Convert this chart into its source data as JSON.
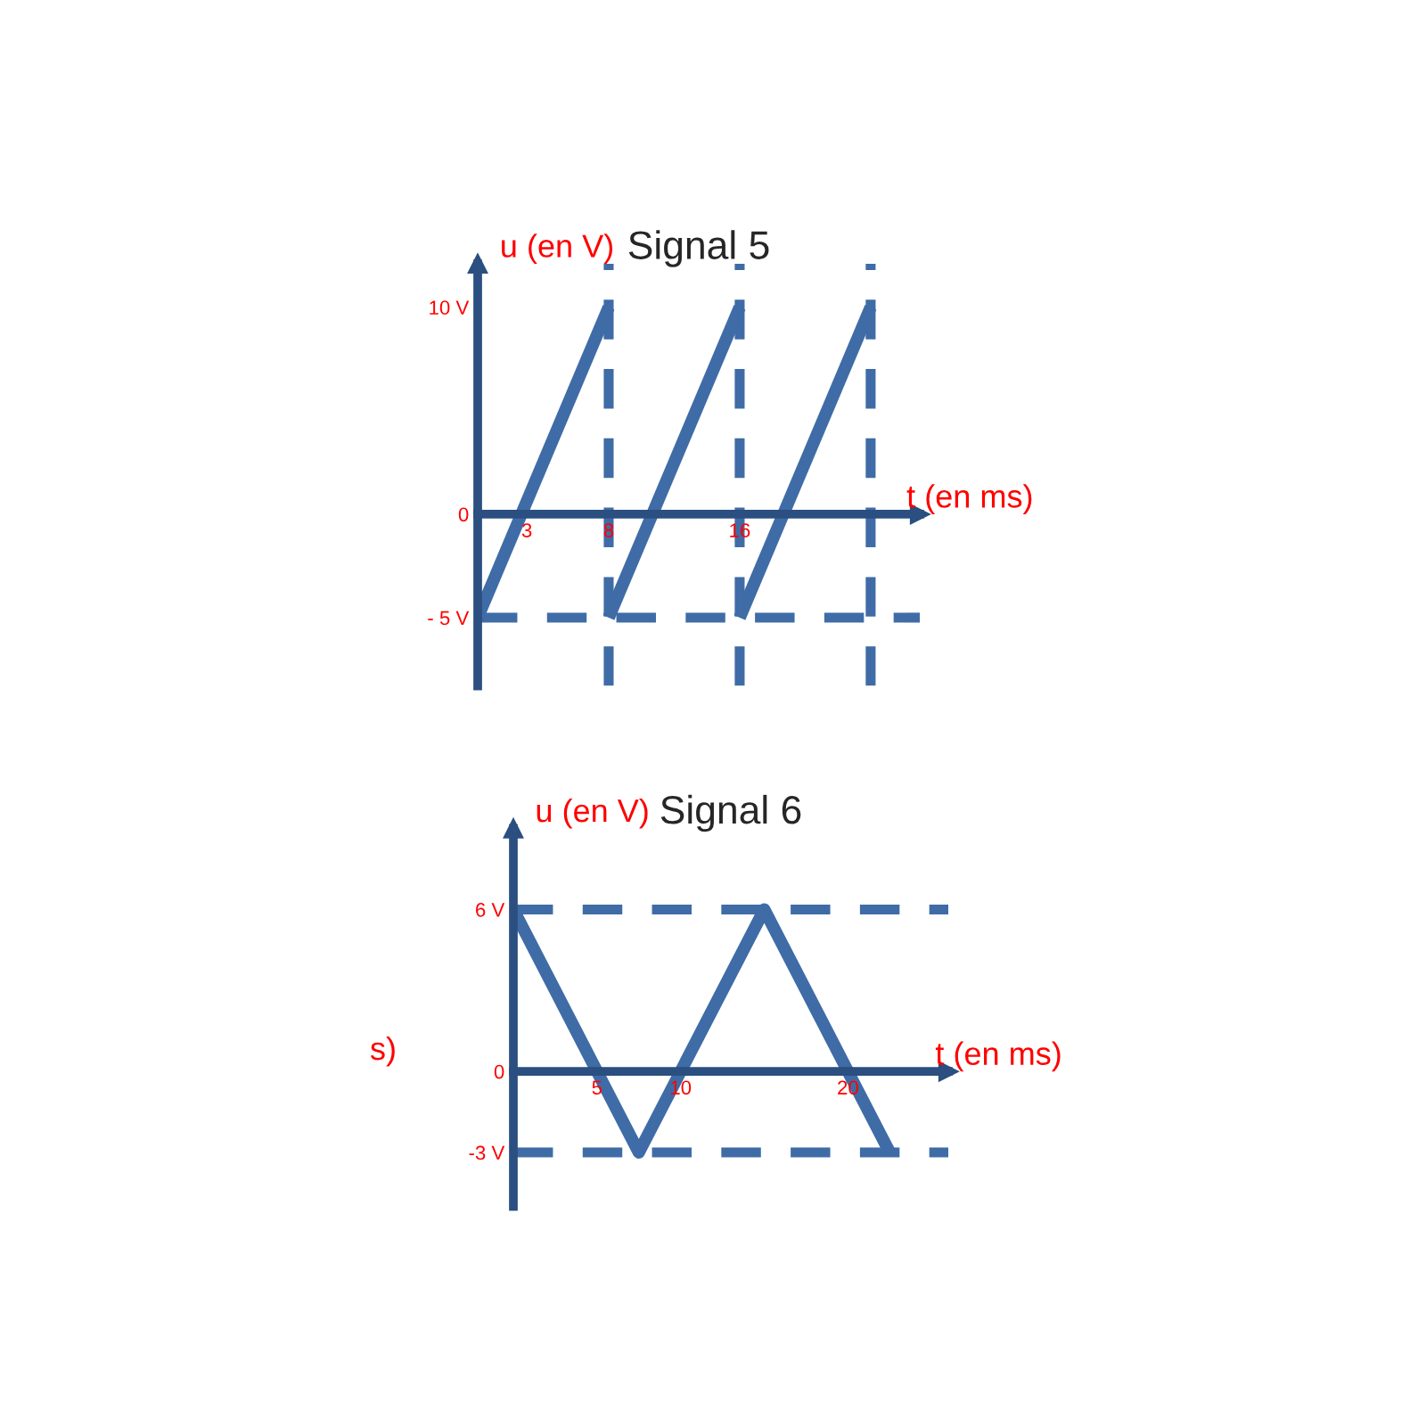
{
  "chart_data": [
    {
      "type": "line",
      "title": "Signal 5",
      "xlabel": "t (en ms)",
      "ylabel": "u (en V)",
      "series": [
        {
          "color": "#3f6ca6",
          "x": [
            0,
            8
          ],
          "values": [
            -5,
            10
          ]
        },
        {
          "color": "#3f6ca6",
          "x": [
            8,
            16
          ],
          "values": [
            -5,
            10
          ]
        },
        {
          "color": "#3f6ca6",
          "x": [
            16,
            24
          ],
          "values": [
            -5,
            10
          ]
        }
      ],
      "xlim": [
        0,
        27
      ],
      "ylim": [
        -8.3,
        12.1
      ],
      "xticks": [
        3,
        8,
        16
      ],
      "yticks": [
        {
          "value": -5,
          "label": "- 5 V"
        },
        0,
        {
          "value": 10,
          "label": "10 V"
        }
      ],
      "ref_lines": [
        {
          "axis": "y",
          "value": -5,
          "line_style": "dashed",
          "color": "#3f6ca6"
        },
        {
          "axis": "x",
          "value": 8,
          "line_style": "dashed",
          "color": "#3f6ca6"
        },
        {
          "axis": "x",
          "value": 16,
          "line_style": "dashed",
          "color": "#3f6ca6"
        },
        {
          "axis": "x",
          "value": 24,
          "line_style": "dashed",
          "color": "#3f6ca6"
        }
      ],
      "grid": false,
      "legend": false,
      "line_style": "solid"
    },
    {
      "type": "line",
      "title": "Signal 6",
      "xlabel": "t (en ms)",
      "ylabel": "u (en V)",
      "series": [
        {
          "color": "#3f6ca6",
          "x": [
            0,
            7.5,
            15,
            22.5
          ],
          "values": [
            6,
            -3,
            6,
            -3
          ]
        }
      ],
      "xlim": [
        0,
        26
      ],
      "ylim": [
        -5,
        9
      ],
      "xticks": [
        5,
        10,
        20
      ],
      "yticks": [
        {
          "value": -3,
          "label": "-3 V"
        },
        0,
        {
          "value": 6,
          "label": "6 V"
        }
      ],
      "ref_lines": [
        {
          "axis": "y",
          "value": 6,
          "line_style": "dashed",
          "color": "#3f6ca6"
        },
        {
          "axis": "y",
          "value": -3,
          "line_style": "dashed",
          "color": "#3f6ca6"
        }
      ],
      "annotations": [
        "s)"
      ],
      "grid": false,
      "legend": false,
      "line_style": "solid"
    }
  ]
}
